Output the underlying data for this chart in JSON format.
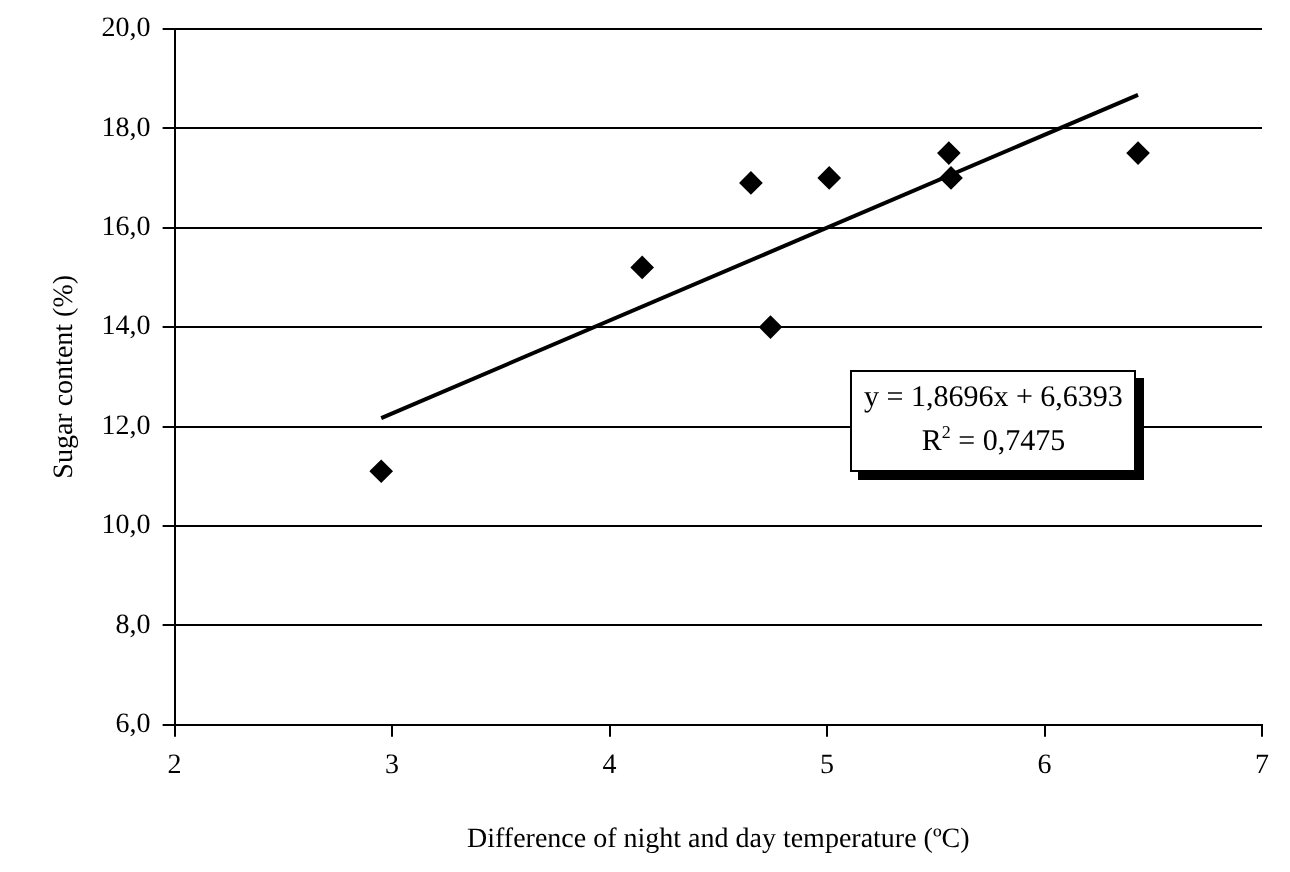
{
  "chart_data": {
    "type": "scatter",
    "xlabel": "Difference of night and day temperature (ºC)",
    "ylabel": "Sugar content (%)",
    "series": [
      {
        "color": "#000000",
        "marker": "diamond",
        "x": [
          2.95,
          4.15,
          4.65,
          4.74,
          5.01,
          5.56,
          5.57,
          6.43
        ],
        "values": [
          11.1,
          15.2,
          16.9,
          14.0,
          17.0,
          17.5,
          17.0,
          17.5
        ]
      },
      {
        "type": "line",
        "color": "#000000",
        "marker": "none",
        "line_style": "solid",
        "x": [
          2.95,
          6.43
        ],
        "values": [
          12.17,
          18.67
        ]
      }
    ],
    "xlim": [
      2,
      7
    ],
    "xticks": [
      2,
      3,
      4,
      5,
      6,
      7
    ],
    "ylim": [
      6,
      20
    ],
    "yticks": [
      {
        "value": 6,
        "label": "6,0"
      },
      {
        "value": 8,
        "label": "8,0"
      },
      {
        "value": 10,
        "label": "10,0"
      },
      {
        "value": 12,
        "label": "12,0"
      },
      {
        "value": 14,
        "label": "14,0"
      },
      {
        "value": 16,
        "label": "16,0"
      },
      {
        "value": 18,
        "label": "18,0"
      },
      {
        "value": 20,
        "label": "20,0"
      }
    ],
    "grid": "y",
    "legend": false,
    "annotations": [
      "y = 1,8696x + 6,6393",
      "R$^{2}$ = 0,7475"
    ]
  }
}
